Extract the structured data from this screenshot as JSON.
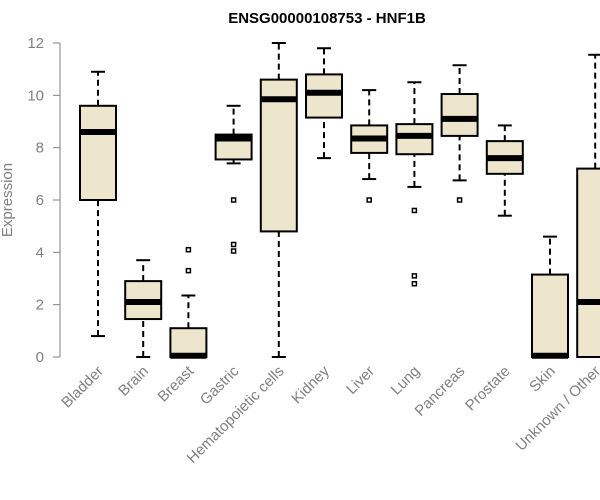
{
  "chart_data": {
    "type": "box",
    "title": "ENSG00000108753 - HNF1B",
    "xlabel": "",
    "ylabel": "Expression",
    "ylim": [
      0,
      12
    ],
    "yticks": [
      0,
      2,
      4,
      6,
      8,
      10,
      12
    ],
    "box_fill": "#EDE6CC",
    "categories": [
      "Bladder",
      "Brain",
      "Breast",
      "Gastric",
      "Hematopoietic cells",
      "Kidney",
      "Liver",
      "Lung",
      "Pancreas",
      "Prostate",
      "Skin",
      "Unknown / Other"
    ],
    "boxes": [
      {
        "min": 0.8,
        "q1": 6.0,
        "median": 8.6,
        "q3": 9.6,
        "max": 10.9,
        "outliers": []
      },
      {
        "min": 0.0,
        "q1": 1.45,
        "median": 2.1,
        "q3": 2.9,
        "max": 3.7,
        "outliers": []
      },
      {
        "min": 0.0,
        "q1": 0.0,
        "median": 0.05,
        "q3": 1.1,
        "max": 2.35,
        "outliers": [
          3.3,
          4.1
        ]
      },
      {
        "min": 7.4,
        "q1": 7.55,
        "median": 8.35,
        "q3": 8.5,
        "max": 9.6,
        "outliers": [
          6.0,
          4.3,
          4.05
        ]
      },
      {
        "min": 0.0,
        "q1": 4.8,
        "median": 9.85,
        "q3": 10.6,
        "max": 12.0,
        "outliers": []
      },
      {
        "min": 7.6,
        "q1": 9.15,
        "median": 10.1,
        "q3": 10.8,
        "max": 11.8,
        "outliers": []
      },
      {
        "min": 6.8,
        "q1": 7.8,
        "median": 8.35,
        "q3": 8.85,
        "max": 10.2,
        "outliers": [
          6.0
        ]
      },
      {
        "min": 6.5,
        "q1": 7.75,
        "median": 8.45,
        "q3": 8.9,
        "max": 10.5,
        "outliers": [
          5.6,
          3.1,
          2.8
        ]
      },
      {
        "min": 6.75,
        "q1": 8.45,
        "median": 9.1,
        "q3": 10.05,
        "max": 11.15,
        "outliers": [
          6.0
        ]
      },
      {
        "min": 5.4,
        "q1": 7.0,
        "median": 7.6,
        "q3": 8.25,
        "max": 8.85,
        "outliers": []
      },
      {
        "min": 0.0,
        "q1": 0.0,
        "median": 0.05,
        "q3": 3.15,
        "max": 4.6,
        "outliers": []
      },
      {
        "min": 0.0,
        "q1": 0.0,
        "median": 2.1,
        "q3": 7.2,
        "max": 11.55,
        "outliers": []
      }
    ]
  }
}
